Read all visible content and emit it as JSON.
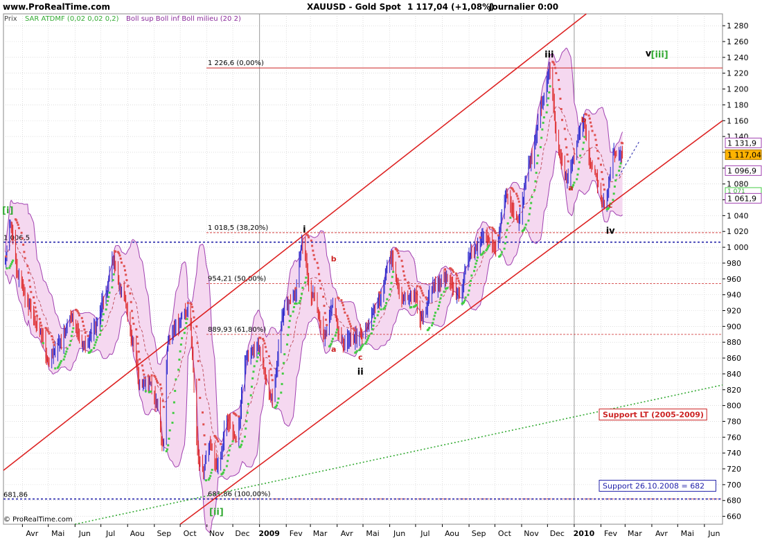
{
  "header": {
    "site": "www.ProRealTime.com",
    "symbol": "XAUUSD - Gold Spot",
    "quote": "1 117,04 (+1,08%)",
    "period": "Journalier  0:00"
  },
  "legend": {
    "prix": "Prix",
    "sar": "SAR ATDMF (0,02 0,02 0,2)",
    "boll": "Boll sup Boll inf Boll milieu (20 2)"
  },
  "copyright": "© ProRealTime.com",
  "colors": {
    "background": "#ffffff",
    "grid": "#c8c8c8",
    "candle": "#2222cc",
    "candle_down": "#dd2222",
    "boll_fill": "#f5d8f0",
    "boll_line": "#a040b0",
    "sar_up": "#44cc44",
    "sar_down": "#e05050",
    "channel": "#dd2222",
    "support_long": "#33aa33",
    "level_blue": "#2222aa",
    "fib": "#cc2222",
    "wave_green": "#33aa33",
    "wave_red": "#cc2222"
  },
  "chart_data": {
    "type": "candlestick",
    "instrument": "XAUUSD - Gold Spot",
    "timeframe": "Journalier",
    "last_price": 1117.04,
    "change_pct": "+1,08%",
    "ylim": [
      650,
      1295
    ],
    "y_ticks": [
      660,
      680,
      700,
      720,
      740,
      760,
      780,
      800,
      820,
      840,
      860,
      880,
      900,
      920,
      940,
      960,
      980,
      1000,
      1020,
      1040,
      1060,
      1080,
      1100,
      1120,
      1140,
      1160,
      1180,
      1200,
      1220,
      1240,
      1260,
      1280
    ],
    "y_tick_labels": [
      "660",
      "680",
      "700",
      "720",
      "740",
      "760",
      "780",
      "800",
      "820",
      "840",
      "860",
      "880",
      "900",
      "920",
      "940",
      "960",
      "980",
      "1 000",
      "1 020",
      "1 040",
      "1 060",
      "1 080",
      "1 100",
      "1 120",
      "1 140",
      "1 160",
      "1 180",
      "1 200",
      "1 220",
      "1 240",
      "1 260",
      "1 280"
    ],
    "x_labels": [
      {
        "label": "Avr",
        "date": "2008-04-01"
      },
      {
        "label": "Mai",
        "date": "2008-05-01"
      },
      {
        "label": "Jun",
        "date": "2008-06-01"
      },
      {
        "label": "Jul",
        "date": "2008-07-01"
      },
      {
        "label": "Aou",
        "date": "2008-08-01"
      },
      {
        "label": "Sep",
        "date": "2008-09-01"
      },
      {
        "label": "Oct",
        "date": "2008-10-01"
      },
      {
        "label": "Nov",
        "date": "2008-11-01"
      },
      {
        "label": "Dec",
        "date": "2008-12-01"
      },
      {
        "label": "2009",
        "date": "2009-01-01",
        "bold": true
      },
      {
        "label": "Fev",
        "date": "2009-02-01"
      },
      {
        "label": "Mar",
        "date": "2009-03-01"
      },
      {
        "label": "Avr",
        "date": "2009-04-01"
      },
      {
        "label": "Mai",
        "date": "2009-05-01"
      },
      {
        "label": "Jun",
        "date": "2009-06-01"
      },
      {
        "label": "Jul",
        "date": "2009-07-01"
      },
      {
        "label": "Aou",
        "date": "2009-08-01"
      },
      {
        "label": "Sep",
        "date": "2009-09-01"
      },
      {
        "label": "Oct",
        "date": "2009-10-01"
      },
      {
        "label": "Nov",
        "date": "2009-11-01"
      },
      {
        "label": "Dec",
        "date": "2009-12-01"
      },
      {
        "label": "2010",
        "date": "2010-01-01",
        "bold": true
      },
      {
        "label": "Fev",
        "date": "2010-02-01"
      },
      {
        "label": "Mar",
        "date": "2010-03-01"
      },
      {
        "label": "Avr",
        "date": "2010-04-01"
      },
      {
        "label": "Mai",
        "date": "2010-05-01"
      },
      {
        "label": "Jun",
        "date": "2010-06-01"
      }
    ],
    "x_range": [
      "2008-03-10",
      "2010-06-22"
    ],
    "price_anchors": [
      {
        "date": "2008-03-12",
        "price": 985
      },
      {
        "date": "2008-03-17",
        "price": 1030
      },
      {
        "date": "2008-03-28",
        "price": 960
      },
      {
        "date": "2008-04-08",
        "price": 925
      },
      {
        "date": "2008-04-22",
        "price": 890
      },
      {
        "date": "2008-05-02",
        "price": 855
      },
      {
        "date": "2008-05-14",
        "price": 880
      },
      {
        "date": "2008-05-28",
        "price": 910
      },
      {
        "date": "2008-06-12",
        "price": 875
      },
      {
        "date": "2008-06-25",
        "price": 900
      },
      {
        "date": "2008-07-05",
        "price": 935
      },
      {
        "date": "2008-07-15",
        "price": 985
      },
      {
        "date": "2008-07-25",
        "price": 945
      },
      {
        "date": "2008-08-08",
        "price": 880
      },
      {
        "date": "2008-08-15",
        "price": 825
      },
      {
        "date": "2008-08-25",
        "price": 830
      },
      {
        "date": "2008-09-05",
        "price": 800
      },
      {
        "date": "2008-09-11",
        "price": 750
      },
      {
        "date": "2008-09-17",
        "price": 880
      },
      {
        "date": "2008-09-26",
        "price": 900
      },
      {
        "date": "2008-10-10",
        "price": 920
      },
      {
        "date": "2008-10-24",
        "price": 725
      },
      {
        "date": "2008-10-28",
        "price": 720
      },
      {
        "date": "2008-11-05",
        "price": 750
      },
      {
        "date": "2008-11-14",
        "price": 720
      },
      {
        "date": "2008-11-24",
        "price": 780
      },
      {
        "date": "2008-12-05",
        "price": 760
      },
      {
        "date": "2008-12-17",
        "price": 860
      },
      {
        "date": "2008-12-30",
        "price": 875
      },
      {
        "date": "2009-01-15",
        "price": 810
      },
      {
        "date": "2009-01-30",
        "price": 920
      },
      {
        "date": "2009-02-10",
        "price": 940
      },
      {
        "date": "2009-02-20",
        "price": 1005
      },
      {
        "date": "2009-03-02",
        "price": 940
      },
      {
        "date": "2009-03-18",
        "price": 890
      },
      {
        "date": "2009-03-27",
        "price": 925
      },
      {
        "date": "2009-04-06",
        "price": 880
      },
      {
        "date": "2009-04-20",
        "price": 885
      },
      {
        "date": "2009-05-01",
        "price": 890
      },
      {
        "date": "2009-05-18",
        "price": 930
      },
      {
        "date": "2009-06-02",
        "price": 985
      },
      {
        "date": "2009-06-15",
        "price": 935
      },
      {
        "date": "2009-06-29",
        "price": 940
      },
      {
        "date": "2009-07-08",
        "price": 910
      },
      {
        "date": "2009-07-22",
        "price": 950
      },
      {
        "date": "2009-08-05",
        "price": 960
      },
      {
        "date": "2009-08-20",
        "price": 940
      },
      {
        "date": "2009-09-04",
        "price": 995
      },
      {
        "date": "2009-09-17",
        "price": 1015
      },
      {
        "date": "2009-10-02",
        "price": 1000
      },
      {
        "date": "2009-10-14",
        "price": 1065
      },
      {
        "date": "2009-10-28",
        "price": 1035
      },
      {
        "date": "2009-11-11",
        "price": 1110
      },
      {
        "date": "2009-11-25",
        "price": 1180
      },
      {
        "date": "2009-12-03",
        "price": 1220
      },
      {
        "date": "2009-12-15",
        "price": 1115
      },
      {
        "date": "2009-12-23",
        "price": 1085
      },
      {
        "date": "2010-01-11",
        "price": 1155
      },
      {
        "date": "2010-01-22",
        "price": 1100
      },
      {
        "date": "2010-02-05",
        "price": 1055
      },
      {
        "date": "2010-02-17",
        "price": 1120
      },
      {
        "date": "2010-02-26",
        "price": 1117
      }
    ],
    "horizontal_levels": [
      {
        "value": 1226.6,
        "label": "1 226,6 (0,00%)",
        "style": "fib"
      },
      {
        "value": 1018.5,
        "label": "1 018,5 (38,20%)",
        "style": "fib"
      },
      {
        "value": 954.21,
        "label": "954,21 (50,00%)",
        "style": "fib"
      },
      {
        "value": 889.93,
        "label": "889,93 (61,80%)",
        "style": "fib"
      },
      {
        "value": 681.86,
        "label": "681,86 (100,00%)",
        "style": "fib_bottom"
      },
      {
        "value": 1006.5,
        "label": "1 006,5",
        "style": "blue"
      },
      {
        "value": 681.86,
        "label": "681,86",
        "style": "blue"
      }
    ],
    "trendlines": [
      {
        "name": "channel-upper",
        "from": {
          "date": "2008-03-10",
          "price": 718
        },
        "to": {
          "date": "2010-01-15",
          "price": 1295
        }
      },
      {
        "name": "channel-lower",
        "from": {
          "date": "2008-10-01",
          "price": 650
        },
        "to": {
          "date": "2010-06-22",
          "price": 1160
        }
      },
      {
        "name": "support-lt",
        "from": {
          "date": "2008-06-01",
          "price": 650
        },
        "to": {
          "date": "2010-06-22",
          "price": 826
        }
      },
      {
        "name": "projection",
        "from": {
          "date": "2010-02-22",
          "price": 1090
        },
        "to": {
          "date": "2010-03-17",
          "price": 1133
        }
      }
    ],
    "price_boxes": [
      {
        "value": 1131.9,
        "label": "1 131,9",
        "kind": "boll_upper"
      },
      {
        "value": 1117.04,
        "label": "1 117,04",
        "kind": "last_price"
      },
      {
        "value": 1096.9,
        "label": "1 096,9",
        "kind": "boll_mid"
      },
      {
        "value": 1071,
        "label": "1 071",
        "kind": "sar"
      },
      {
        "value": 1061.9,
        "label": "1 061,9",
        "kind": "boll_lower"
      }
    ],
    "wave_labels": [
      {
        "text": "[i]",
        "date": "2008-03-15",
        "price": 1043,
        "color": "green"
      },
      {
        "text": "[ii]",
        "date": "2008-11-12",
        "price": 662,
        "color": "green"
      },
      {
        "text": "[iii]",
        "date": "2010-04-10",
        "price": 1240,
        "color": "green"
      },
      {
        "text": "i",
        "date": "2009-02-22",
        "price": 1019,
        "color": "black"
      },
      {
        "text": "ii",
        "date": "2009-04-28",
        "price": 839,
        "color": "black"
      },
      {
        "text": "iii",
        "date": "2009-12-03",
        "price": 1240,
        "color": "black"
      },
      {
        "text": "iv",
        "date": "2010-02-12",
        "price": 1017,
        "color": "black"
      },
      {
        "text": "v",
        "date": "2010-03-28",
        "price": 1241,
        "color": "black"
      },
      {
        "text": "a",
        "date": "2009-03-28",
        "price": 868,
        "color": "red"
      },
      {
        "text": "b",
        "date": "2009-03-28",
        "price": 982,
        "color": "red"
      },
      {
        "text": "c",
        "date": "2009-04-28",
        "price": 858,
        "color": "red"
      },
      {
        "text": "a",
        "date": "2009-12-28",
        "price": 1072,
        "color": "red"
      },
      {
        "text": "b",
        "date": "2010-01-12",
        "price": 1158,
        "color": "red"
      },
      {
        "text": "c",
        "date": "2010-02-12",
        "price": 1050,
        "color": "red"
      }
    ],
    "annotations": [
      {
        "text": "Support LT (2005-2009)",
        "date": "2010-01-30",
        "price": 786,
        "color": "red"
      },
      {
        "text": "Support 26.10.2008 = 682",
        "date": "2010-01-30",
        "price": 696,
        "color": "blue"
      }
    ]
  }
}
